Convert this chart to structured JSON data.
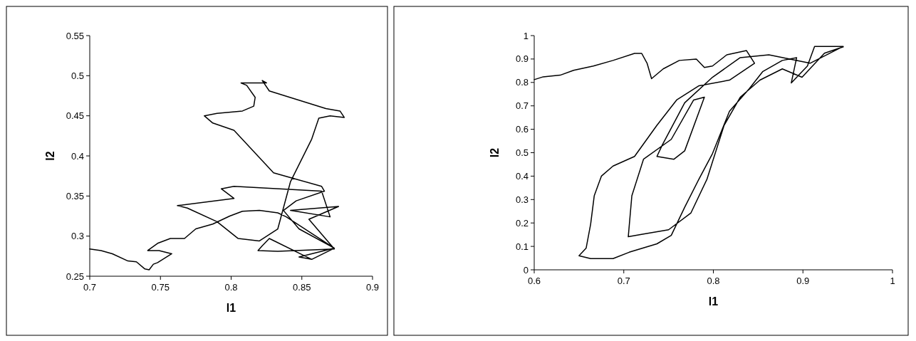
{
  "chart_data": [
    {
      "type": "line",
      "xlabel": "l1",
      "ylabel": "l2",
      "xlim": [
        0.7,
        0.9
      ],
      "xticks": [
        0.7,
        0.75,
        0.8,
        0.85,
        0.9
      ],
      "ylim": [
        0.25,
        0.55
      ],
      "yticks": [
        0.25,
        0.3,
        0.35,
        0.4,
        0.45,
        0.5,
        0.55
      ],
      "marker": "none",
      "line_style": "solid",
      "series": [
        {
          "color": "#000000",
          "x": [
            0.7,
            0.708,
            0.716,
            0.727,
            0.733,
            0.739,
            0.742,
            0.745,
            0.748,
            0.758,
            0.749,
            0.741,
            0.748,
            0.757,
            0.767,
            0.775,
            0.787,
            0.799,
            0.808,
            0.82,
            0.833,
            0.839,
            0.873,
            0.857,
            0.827,
            0.822,
            0.819,
            0.833,
            0.873,
            0.855,
            0.876,
            0.842,
            0.87,
            0.864,
            0.802,
            0.793,
            0.802,
            0.762,
            0.769,
            0.79,
            0.805,
            0.82,
            0.833,
            0.842,
            0.857,
            0.862,
            0.87,
            0.88,
            0.877,
            0.867,
            0.827,
            0.822,
            0.825,
            0.807,
            0.811,
            0.817,
            0.816,
            0.808,
            0.79,
            0.781,
            0.787,
            0.802,
            0.83,
            0.842,
            0.864,
            0.866,
            0.846,
            0.837,
            0.848,
            0.873,
            0.848,
            0.857
          ],
          "values": [
            0.284,
            0.282,
            0.278,
            0.269,
            0.268,
            0.259,
            0.258,
            0.265,
            0.267,
            0.278,
            0.282,
            0.282,
            0.291,
            0.297,
            0.297,
            0.309,
            0.315,
            0.325,
            0.331,
            0.332,
            0.329,
            0.324,
            0.285,
            0.271,
            0.297,
            0.288,
            0.282,
            0.281,
            0.284,
            0.321,
            0.337,
            0.332,
            0.324,
            0.356,
            0.362,
            0.359,
            0.347,
            0.338,
            0.335,
            0.318,
            0.297,
            0.294,
            0.309,
            0.368,
            0.421,
            0.447,
            0.45,
            0.448,
            0.456,
            0.459,
            0.481,
            0.494,
            0.491,
            0.491,
            0.488,
            0.473,
            0.462,
            0.456,
            0.453,
            0.45,
            0.441,
            0.432,
            0.379,
            0.373,
            0.362,
            0.356,
            0.344,
            0.332,
            0.309,
            0.285,
            0.274,
            0.271
          ]
        }
      ]
    },
    {
      "type": "line",
      "xlabel": "l1",
      "ylabel": "l2",
      "xlim": [
        0.6,
        1
      ],
      "xticks": [
        0.6,
        0.7,
        0.8,
        0.9,
        1
      ],
      "ylim": [
        0,
        1
      ],
      "yticks": [
        0,
        0.1,
        0.2,
        0.3,
        0.4,
        0.5,
        0.6,
        0.7,
        0.8,
        0.9,
        1
      ],
      "marker": "none",
      "line_style": "solid",
      "series": [
        {
          "color": "#000000",
          "x": [
            0.6,
            0.61,
            0.629,
            0.644,
            0.666,
            0.688,
            0.712,
            0.72,
            0.726,
            0.731,
            0.744,
            0.762,
            0.781,
            0.79,
            0.799,
            0.815,
            0.837,
            0.846,
            0.818,
            0.784,
            0.759,
            0.737,
            0.728,
            0.712,
            0.688,
            0.675,
            0.667,
            0.663,
            0.658,
            0.65,
            0.663,
            0.688,
            0.706,
            0.737,
            0.753,
            0.768,
            0.784,
            0.799,
            0.818,
            0.84,
            0.855,
            0.877,
            0.893,
            0.887,
            0.905,
            0.913,
            0.945,
            0.908,
            0.862,
            0.83,
            0.799,
            0.768,
            0.743,
            0.737,
            0.756,
            0.768,
            0.79,
            0.778,
            0.753,
            0.722,
            0.709,
            0.705,
            0.722,
            0.75,
            0.775,
            0.793,
            0.812,
            0.83,
            0.852,
            0.877,
            0.899,
            0.924,
            0.945
          ],
          "values": [
            0.812,
            0.824,
            0.831,
            0.852,
            0.87,
            0.894,
            0.924,
            0.924,
            0.882,
            0.816,
            0.858,
            0.894,
            0.9,
            0.864,
            0.87,
            0.918,
            0.936,
            0.882,
            0.81,
            0.786,
            0.725,
            0.617,
            0.569,
            0.484,
            0.443,
            0.4,
            0.316,
            0.195,
            0.093,
            0.06,
            0.048,
            0.048,
            0.075,
            0.111,
            0.147,
            0.267,
            0.388,
            0.496,
            0.677,
            0.773,
            0.846,
            0.894,
            0.906,
            0.798,
            0.87,
            0.954,
            0.954,
            0.882,
            0.918,
            0.906,
            0.822,
            0.713,
            0.533,
            0.484,
            0.472,
            0.508,
            0.737,
            0.725,
            0.557,
            0.472,
            0.316,
            0.141,
            0.153,
            0.171,
            0.243,
            0.388,
            0.617,
            0.737,
            0.81,
            0.858,
            0.822,
            0.925,
            0.952
          ]
        }
      ]
    }
  ]
}
